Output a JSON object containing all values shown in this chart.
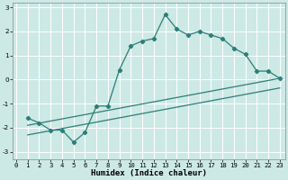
{
  "xlabel": "Humidex (Indice chaleur)",
  "background_color": "#cce9e5",
  "grid_color": "#ffffff",
  "line_color": "#2d7d78",
  "main_x": [
    1,
    2,
    3,
    4,
    5,
    6,
    7,
    8,
    9,
    10,
    11,
    12,
    13,
    14,
    15,
    16,
    17,
    18,
    19,
    20,
    21,
    22,
    23
  ],
  "main_y": [
    -1.6,
    -1.8,
    -2.1,
    -2.1,
    -2.6,
    -2.2,
    -1.1,
    -1.1,
    0.4,
    1.4,
    1.6,
    1.7,
    2.7,
    2.1,
    1.85,
    2.0,
    1.85,
    1.7,
    1.3,
    1.05,
    0.35,
    0.35,
    0.05
  ],
  "line1_x": [
    1,
    23
  ],
  "line1_y": [
    -1.9,
    0.05
  ],
  "line2_x": [
    1,
    23
  ],
  "line2_y": [
    -2.3,
    -0.35
  ],
  "xlim": [
    -0.3,
    23.5
  ],
  "ylim": [
    -3.3,
    3.2
  ],
  "xticks": [
    0,
    1,
    2,
    3,
    4,
    5,
    6,
    7,
    8,
    9,
    10,
    11,
    12,
    13,
    14,
    15,
    16,
    17,
    18,
    19,
    20,
    21,
    22,
    23
  ],
  "yticks": [
    -3,
    -2,
    -1,
    0,
    1,
    2,
    3
  ],
  "tick_fontsize": 5.2,
  "xlabel_fontsize": 6.5
}
